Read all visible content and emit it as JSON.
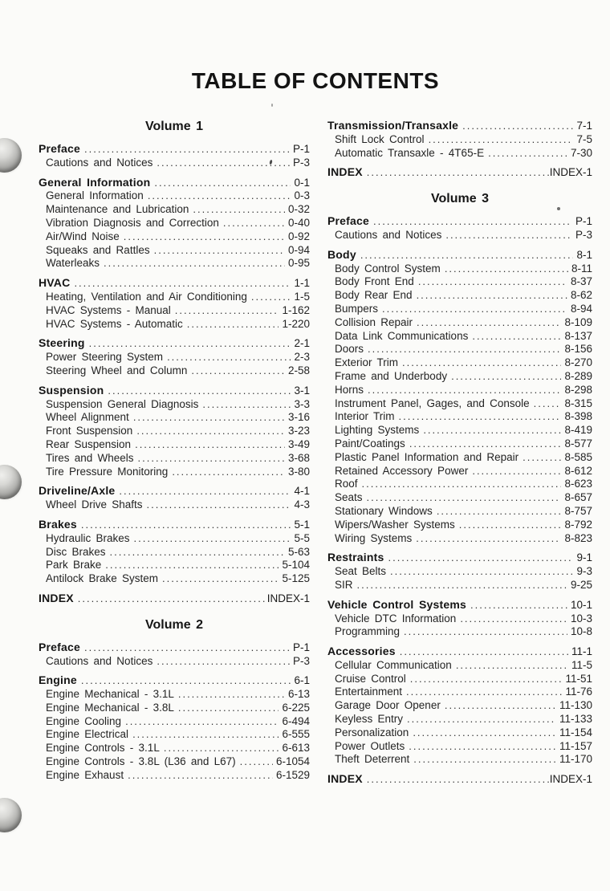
{
  "page_title": "TABLE OF CONTENTS",
  "columns": [
    {
      "blocks": [
        {
          "type": "volume",
          "title": "Volume 1"
        },
        {
          "type": "section",
          "label": "Preface",
          "page": "P-1",
          "items": [
            {
              "label": "Cautions and Notices",
              "page": "P-3"
            }
          ]
        },
        {
          "type": "section",
          "label": "General Information",
          "page": "0-1",
          "items": [
            {
              "label": "General Information",
              "page": "0-3"
            },
            {
              "label": "Maintenance and Lubrication",
              "page": "0-32"
            },
            {
              "label": "Vibration Diagnosis and Correction",
              "page": "0-40"
            },
            {
              "label": "Air/Wind Noise",
              "page": "0-92"
            },
            {
              "label": "Squeaks and Rattles",
              "page": "0-94"
            },
            {
              "label": "Waterleaks",
              "page": "0-95"
            }
          ]
        },
        {
          "type": "section",
          "label": "HVAC",
          "page": "1-1",
          "items": [
            {
              "label": "Heating, Ventilation and Air Conditioning",
              "page": "1-5"
            },
            {
              "label": "HVAC Systems - Manual",
              "page": "1-162"
            },
            {
              "label": "HVAC Systems - Automatic",
              "page": "1-220"
            }
          ]
        },
        {
          "type": "section",
          "label": "Steering",
          "page": "2-1",
          "items": [
            {
              "label": "Power Steering System",
              "page": "2-3"
            },
            {
              "label": "Steering Wheel and Column",
              "page": "2-58"
            }
          ]
        },
        {
          "type": "section",
          "label": "Suspension",
          "page": "3-1",
          "items": [
            {
              "label": "Suspension General Diagnosis",
              "page": "3-3"
            },
            {
              "label": "Wheel Alignment",
              "page": "3-16"
            },
            {
              "label": "Front Suspension",
              "page": "3-23"
            },
            {
              "label": "Rear Suspension",
              "page": "3-49"
            },
            {
              "label": "Tires and Wheels",
              "page": "3-68"
            },
            {
              "label": "Tire Pressure Monitoring",
              "page": "3-80"
            }
          ]
        },
        {
          "type": "section",
          "label": "Driveline/Axle",
          "page": "4-1",
          "items": [
            {
              "label": "Wheel Drive Shafts",
              "page": "4-3"
            }
          ]
        },
        {
          "type": "section",
          "label": "Brakes",
          "page": "5-1",
          "items": [
            {
              "label": "Hydraulic Brakes",
              "page": "5-5"
            },
            {
              "label": "Disc Brakes",
              "page": "5-63"
            },
            {
              "label": "Park Brake",
              "page": "5-104"
            },
            {
              "label": "Antilock Brake System",
              "page": "5-125"
            }
          ]
        },
        {
          "type": "index",
          "label": "INDEX",
          "page": "INDEX-1"
        },
        {
          "type": "volume",
          "title": "Volume 2"
        },
        {
          "type": "section",
          "label": "Preface",
          "page": "P-1",
          "items": [
            {
              "label": "Cautions and Notices",
              "page": "P-3"
            }
          ]
        },
        {
          "type": "section",
          "label": "Engine",
          "page": "6-1",
          "items": [
            {
              "label": "Engine Mechanical - 3.1L",
              "page": "6-13"
            },
            {
              "label": "Engine Mechanical - 3.8L",
              "page": "6-225"
            },
            {
              "label": "Engine Cooling",
              "page": "6-494"
            },
            {
              "label": "Engine Electrical",
              "page": "6-555"
            },
            {
              "label": "Engine Controls - 3.1L",
              "page": "6-613"
            },
            {
              "label": "Engine Controls - 3.8L (L36 and L67)",
              "page": "6-1054"
            },
            {
              "label": "Engine Exhaust",
              "page": "6-1529"
            }
          ]
        }
      ]
    },
    {
      "blocks": [
        {
          "type": "section",
          "label": "Transmission/Transaxle",
          "page": "7-1",
          "items": [
            {
              "label": "Shift Lock Control",
              "page": "7-5"
            },
            {
              "label": "Automatic Transaxle - 4T65-E",
              "page": "7-30"
            }
          ]
        },
        {
          "type": "index",
          "label": "INDEX",
          "page": "INDEX-1"
        },
        {
          "type": "volume",
          "title": "Volume 3"
        },
        {
          "type": "section",
          "label": "Preface",
          "page": "P-1",
          "items": [
            {
              "label": "Cautions and Notices",
              "page": "P-3"
            }
          ]
        },
        {
          "type": "section",
          "label": "Body",
          "page": "8-1",
          "items": [
            {
              "label": "Body Control System",
              "page": "8-11"
            },
            {
              "label": "Body Front End",
              "page": "8-37"
            },
            {
              "label": "Body Rear End",
              "page": "8-62"
            },
            {
              "label": "Bumpers",
              "page": "8-94"
            },
            {
              "label": "Collision Repair",
              "page": "8-109"
            },
            {
              "label": "Data Link Communications",
              "page": "8-137"
            },
            {
              "label": "Doors",
              "page": "8-156"
            },
            {
              "label": "Exterior Trim",
              "page": "8-270"
            },
            {
              "label": "Frame and Underbody",
              "page": "8-289"
            },
            {
              "label": "Horns",
              "page": "8-298"
            },
            {
              "label": "Instrument Panel, Gages, and Console",
              "page": "8-315"
            },
            {
              "label": "Interior Trim",
              "page": "8-398"
            },
            {
              "label": "Lighting Systems",
              "page": "8-419"
            },
            {
              "label": "Paint/Coatings",
              "page": "8-577"
            },
            {
              "label": "Plastic Panel Information and Repair",
              "page": "8-585"
            },
            {
              "label": "Retained Accessory Power",
              "page": "8-612"
            },
            {
              "label": "Roof",
              "page": "8-623"
            },
            {
              "label": "Seats",
              "page": "8-657"
            },
            {
              "label": "Stationary Windows",
              "page": "8-757"
            },
            {
              "label": "Wipers/Washer Systems",
              "page": "8-792"
            },
            {
              "label": "Wiring Systems",
              "page": "8-823"
            }
          ]
        },
        {
          "type": "section",
          "label": "Restraints",
          "page": "9-1",
          "items": [
            {
              "label": "Seat Belts",
              "page": "9-3"
            },
            {
              "label": "SIR",
              "page": "9-25"
            }
          ]
        },
        {
          "type": "section",
          "label": "Vehicle Control Systems",
          "page": "10-1",
          "items": [
            {
              "label": "Vehicle DTC Information",
              "page": "10-3"
            },
            {
              "label": "Programming",
              "page": "10-8"
            }
          ]
        },
        {
          "type": "section",
          "label": "Accessories",
          "page": "11-1",
          "items": [
            {
              "label": "Cellular Communication",
              "page": "11-5"
            },
            {
              "label": "Cruise Control",
              "page": "11-51"
            },
            {
              "label": "Entertainment",
              "page": "11-76"
            },
            {
              "label": "Garage Door Opener",
              "page": "11-130"
            },
            {
              "label": "Keyless Entry",
              "page": "11-133"
            },
            {
              "label": "Personalization",
              "page": "11-154"
            },
            {
              "label": "Power Outlets",
              "page": "11-157"
            },
            {
              "label": "Theft Deterrent",
              "page": "11-170"
            }
          ]
        },
        {
          "type": "index",
          "label": "INDEX",
          "page": "INDEX-1"
        }
      ]
    }
  ]
}
